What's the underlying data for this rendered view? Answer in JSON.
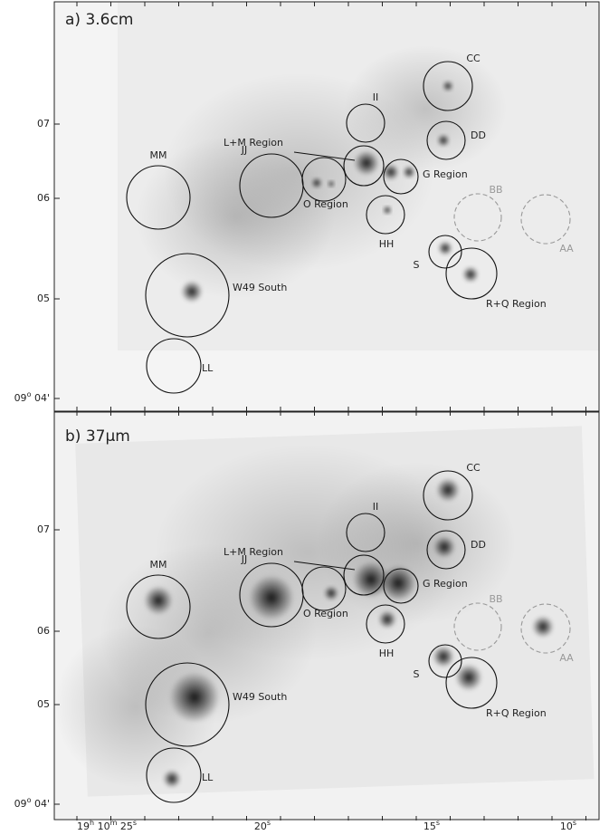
{
  "panels": [
    {
      "label": "a) 3.6cm"
    },
    {
      "label": "b) 37μm"
    }
  ],
  "regions": [
    "CC",
    "DD",
    "II",
    "L+M Region",
    "G Region",
    "JJ",
    "O Region",
    "HH",
    "BB",
    "AA",
    "MM",
    "S",
    "R+Q Region",
    "W49 South",
    "LL"
  ],
  "y_ticks": [
    [
      "07"
    ],
    [
      "06"
    ],
    [
      "05"
    ],
    [
      "09",
      "o",
      " 04'"
    ]
  ],
  "x_ticks": [
    [
      "19",
      "h",
      " 10",
      "m",
      " 25",
      "s"
    ],
    [
      "20",
      "s"
    ],
    [
      "15",
      "s"
    ],
    [
      "10",
      "s"
    ]
  ]
}
